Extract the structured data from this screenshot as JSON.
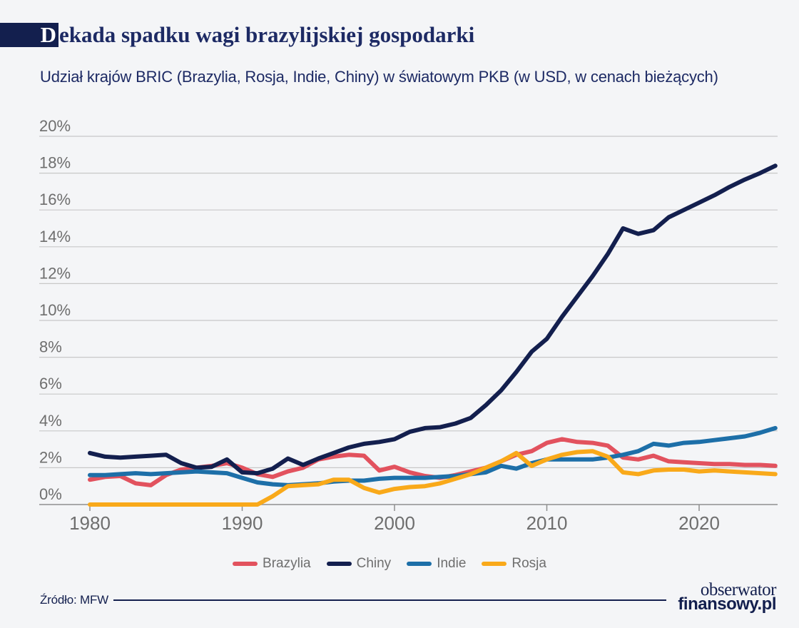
{
  "header": {
    "title": "Dekada spadku wagi brazylijskiej gospodarki",
    "subtitle": "Udział krajów BRIC (Brazylia, Rosja, Indie, Chiny) w światowym PKB (w USD, w cenach bieżących)"
  },
  "footer": {
    "source_label": "Źródło: MFW",
    "brand_line1": "obserwator",
    "brand_line2": "finansowy.pl"
  },
  "colors": {
    "navy": "#131F4E",
    "red": "#E2525E",
    "blue": "#1D6FA8",
    "orange": "#F9A91A",
    "grid": "#C8C8C8",
    "axis": "#8F8F8F",
    "tick_text": "#6E6E6E",
    "background": "#F4F5F7"
  },
  "chart_data": {
    "type": "line",
    "title": "Dekada spadku wagi brazylijskiej gospodarki",
    "subtitle": "Udział krajów BRIC (Brazylia, Rosja, Indie, Chiny) w światowym PKB (w USD, w cenach bieżących)",
    "source": "Źródło: MFW",
    "xlabel": "",
    "ylabel": "",
    "ylim": [
      0,
      20
    ],
    "ytick_step": 2,
    "ytick_suffix": "%",
    "xticks": [
      1980,
      1990,
      2000,
      2010,
      2020
    ],
    "grid": true,
    "legend_position": "bottom",
    "x": [
      1980,
      1981,
      1982,
      1983,
      1984,
      1985,
      1986,
      1987,
      1988,
      1989,
      1990,
      1991,
      1992,
      1993,
      1994,
      1995,
      1996,
      1997,
      1998,
      1999,
      2000,
      2001,
      2002,
      2003,
      2004,
      2005,
      2006,
      2007,
      2008,
      2009,
      2010,
      2011,
      2012,
      2013,
      2014,
      2015,
      2016,
      2017,
      2018,
      2019,
      2020,
      2021,
      2022,
      2023,
      2024,
      2025
    ],
    "series": [
      {
        "name": "Brazylia",
        "color_key": "red",
        "values": [
          1.35,
          1.5,
          1.55,
          1.15,
          1.05,
          1.6,
          1.9,
          2.0,
          2.1,
          2.25,
          2.0,
          1.65,
          1.5,
          1.8,
          2.0,
          2.45,
          2.6,
          2.7,
          2.65,
          1.85,
          2.05,
          1.75,
          1.55,
          1.45,
          1.6,
          1.8,
          2.0,
          2.35,
          2.7,
          2.9,
          3.35,
          3.55,
          3.4,
          3.35,
          3.2,
          2.55,
          2.45,
          2.65,
          2.35,
          2.3,
          2.25,
          2.2,
          2.2,
          2.15,
          2.15,
          2.1
        ]
      },
      {
        "name": "Chiny",
        "color_key": "navy",
        "values": [
          2.8,
          2.6,
          2.55,
          2.6,
          2.65,
          2.7,
          2.25,
          2.0,
          2.05,
          2.45,
          1.75,
          1.7,
          1.95,
          2.5,
          2.15,
          2.5,
          2.8,
          3.1,
          3.3,
          3.4,
          3.55,
          3.95,
          4.15,
          4.2,
          4.4,
          4.7,
          5.4,
          6.2,
          7.2,
          8.3,
          9.0,
          10.2,
          11.3,
          12.4,
          13.6,
          15.0,
          14.7,
          14.9,
          15.6,
          16.0,
          16.4,
          16.8,
          17.25,
          17.65,
          18.0,
          18.4
        ]
      },
      {
        "name": "Indie",
        "color_key": "blue",
        "values": [
          1.6,
          1.6,
          1.65,
          1.7,
          1.65,
          1.7,
          1.75,
          1.8,
          1.75,
          1.7,
          1.45,
          1.2,
          1.1,
          1.05,
          1.1,
          1.15,
          1.25,
          1.3,
          1.3,
          1.4,
          1.45,
          1.45,
          1.45,
          1.5,
          1.55,
          1.65,
          1.75,
          2.1,
          1.95,
          2.25,
          2.45,
          2.45,
          2.45,
          2.45,
          2.55,
          2.7,
          2.9,
          3.3,
          3.2,
          3.35,
          3.4,
          3.5,
          3.6,
          3.7,
          3.9,
          4.15
        ]
      },
      {
        "name": "Rosja",
        "color_key": "orange",
        "values": [
          0,
          0,
          0,
          0,
          0,
          0,
          0,
          0,
          0,
          0,
          0,
          0,
          0.45,
          1.0,
          1.05,
          1.1,
          1.35,
          1.35,
          0.9,
          0.65,
          0.85,
          0.95,
          1.0,
          1.15,
          1.4,
          1.65,
          2.0,
          2.35,
          2.8,
          2.1,
          2.45,
          2.7,
          2.85,
          2.9,
          2.6,
          1.75,
          1.65,
          1.85,
          1.9,
          1.9,
          1.8,
          1.85,
          1.8,
          1.75,
          1.7,
          1.65
        ]
      }
    ]
  }
}
